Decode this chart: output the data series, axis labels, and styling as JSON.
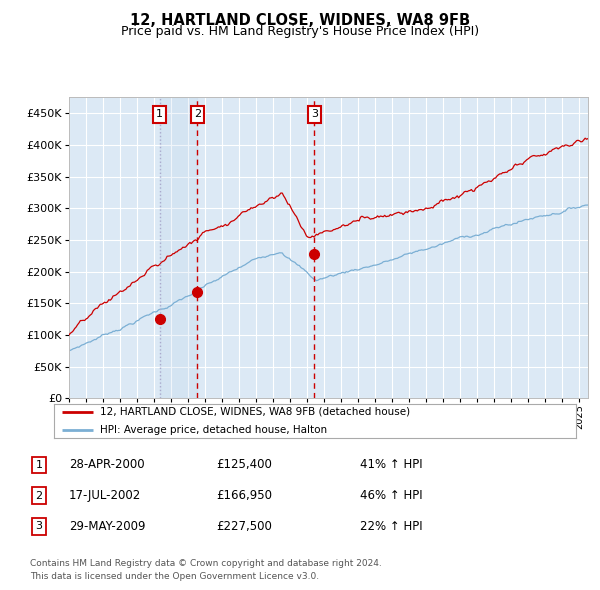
{
  "title": "12, HARTLAND CLOSE, WIDNES, WA8 9FB",
  "subtitle": "Price paid vs. HM Land Registry's House Price Index (HPI)",
  "background_color": "#dce9f5",
  "grid_color": "#ffffff",
  "red_line_color": "#cc0000",
  "blue_line_color": "#7bafd4",
  "sale1_x": 2000.33,
  "sale1_price": 125400,
  "sale2_x": 2002.54,
  "sale2_price": 166950,
  "sale3_x": 2009.41,
  "sale3_price": 227500,
  "xmin": 1995.0,
  "xmax": 2025.5,
  "ymin": 0,
  "ymax": 475000,
  "yticks": [
    0,
    50000,
    100000,
    150000,
    200000,
    250000,
    300000,
    350000,
    400000,
    450000
  ],
  "ytick_labels": [
    "£0",
    "£50K",
    "£100K",
    "£150K",
    "£200K",
    "£250K",
    "£300K",
    "£350K",
    "£400K",
    "£450K"
  ],
  "legend_property_label": "12, HARTLAND CLOSE, WIDNES, WA8 9FB (detached house)",
  "legend_hpi_label": "HPI: Average price, detached house, Halton",
  "table_rows": [
    {
      "num": "1",
      "date": "28-APR-2000",
      "price": "£125,400",
      "change": "41% ↑ HPI"
    },
    {
      "num": "2",
      "date": "17-JUL-2002",
      "price": "£166,950",
      "change": "46% ↑ HPI"
    },
    {
      "num": "3",
      "date": "29-MAY-2009",
      "price": "£227,500",
      "change": "22% ↑ HPI"
    }
  ],
  "footer_line1": "Contains HM Land Registry data © Crown copyright and database right 2024.",
  "footer_line2": "This data is licensed under the Open Government Licence v3.0."
}
